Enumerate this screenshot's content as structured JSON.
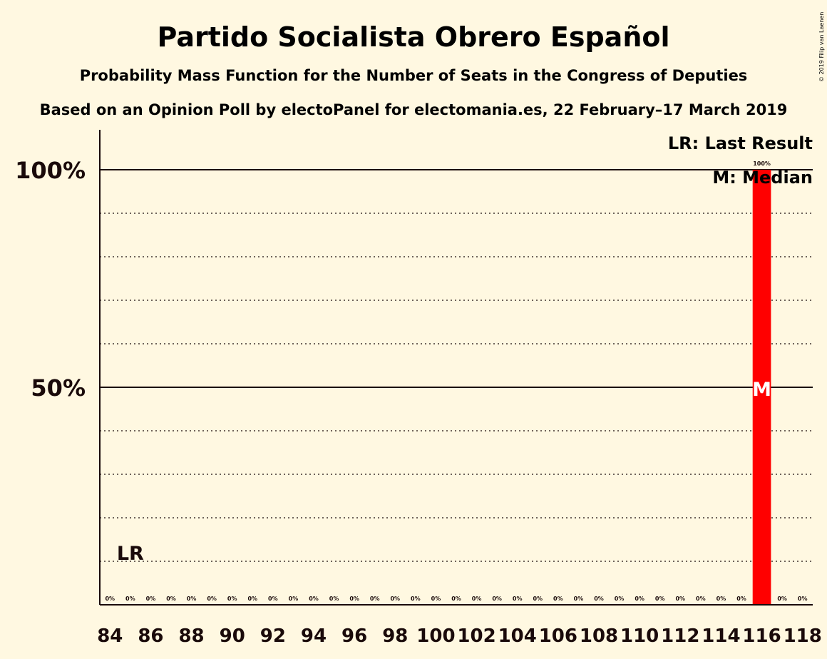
{
  "chart_data": {
    "type": "bar",
    "title": "Partido Socialista Obrero Español",
    "subtitle": "Probability Mass Function for the Number of Seats in the Congress of Deputies",
    "source": "Based on an Opinion Poll by electoPanel for electomania.es, 22 February–17 March 2019",
    "copyright": "© 2019 Filip van Laenen",
    "x": [
      84,
      85,
      86,
      87,
      88,
      89,
      90,
      91,
      92,
      93,
      94,
      95,
      96,
      97,
      98,
      99,
      100,
      101,
      102,
      103,
      104,
      105,
      106,
      107,
      108,
      109,
      110,
      111,
      112,
      113,
      114,
      115,
      116,
      117,
      118
    ],
    "values": [
      0,
      0,
      0,
      0,
      0,
      0,
      0,
      0,
      0,
      0,
      0,
      0,
      0,
      0,
      0,
      0,
      0,
      0,
      0,
      0,
      0,
      0,
      0,
      0,
      0,
      0,
      0,
      0,
      0,
      0,
      0,
      0,
      100,
      0,
      0
    ],
    "data_labels": [
      "0%",
      "0%",
      "0%",
      "0%",
      "0%",
      "0%",
      "0%",
      "0%",
      "0%",
      "0%",
      "0%",
      "0%",
      "0%",
      "0%",
      "0%",
      "0%",
      "0%",
      "0%",
      "0%",
      "0%",
      "0%",
      "0%",
      "0%",
      "0%",
      "0%",
      "0%",
      "0%",
      "0%",
      "0%",
      "0%",
      "0%",
      "0%",
      "100%",
      "0%",
      "0%"
    ],
    "x_tick_labels": [
      "84",
      "86",
      "88",
      "90",
      "92",
      "94",
      "96",
      "98",
      "100",
      "102",
      "104",
      "106",
      "108",
      "110",
      "112",
      "114",
      "116",
      "118"
    ],
    "x_ticks": [
      84,
      86,
      88,
      90,
      92,
      94,
      96,
      98,
      100,
      102,
      104,
      106,
      108,
      110,
      112,
      114,
      116,
      118
    ],
    "y_tick_labels": [
      "50%",
      "100%"
    ],
    "y_ticks": [
      50,
      100
    ],
    "ylim": [
      0,
      100
    ],
    "grid": "dotted every 10%",
    "last_result": 85,
    "last_result_label": "LR",
    "last_result_marker_level": 12,
    "median": 116,
    "median_label": "M",
    "median_marker_level": 50,
    "legend": {
      "position": "top-right",
      "items": [
        "LR: Last Result",
        "M: Median"
      ]
    },
    "colors": {
      "bar": "#ff0000",
      "background": "#fff8e1",
      "text": "#1a0a0a",
      "median_text": "#ffffff"
    }
  }
}
